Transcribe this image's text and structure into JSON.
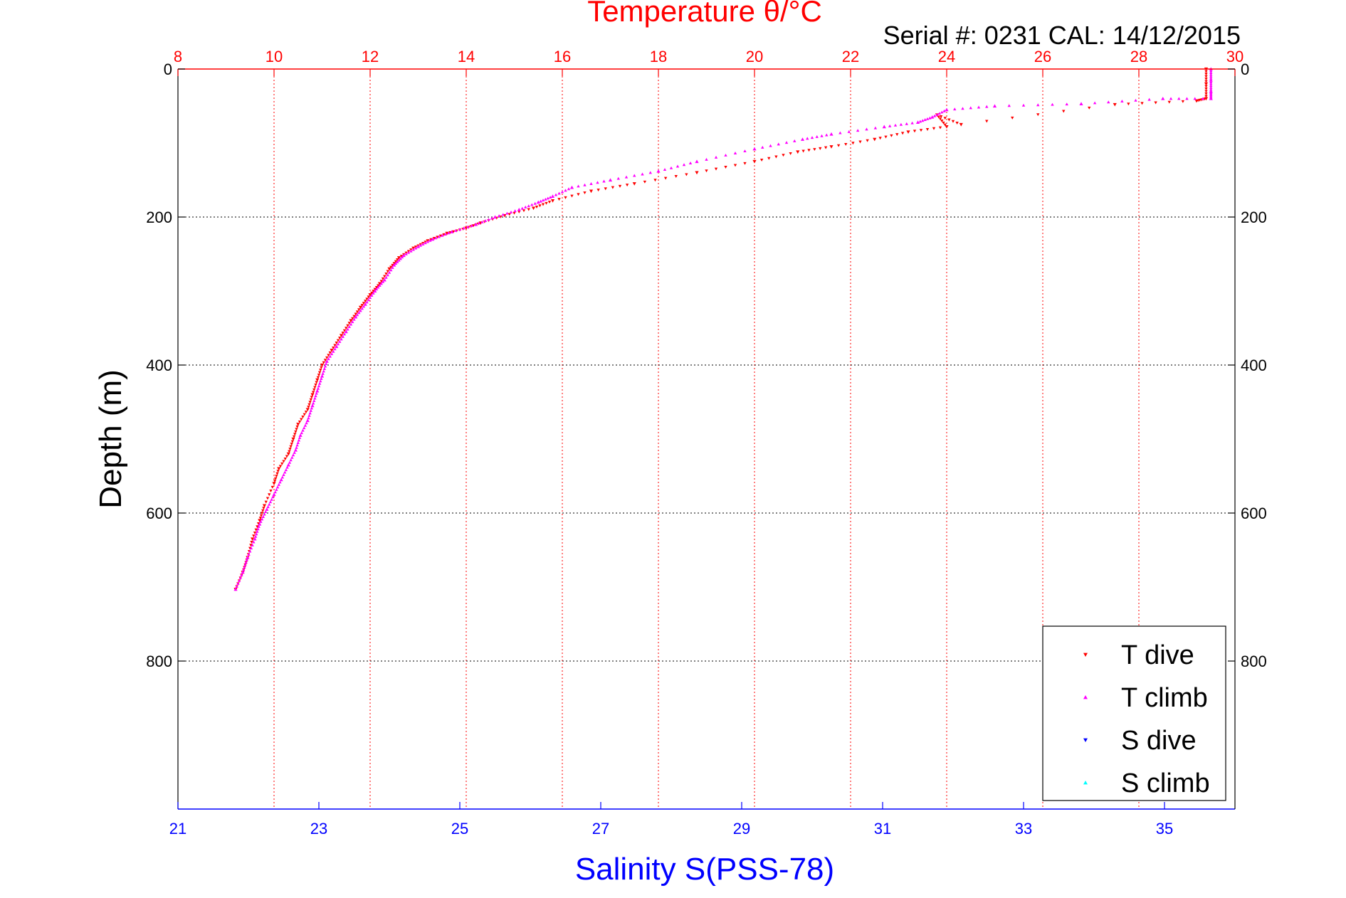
{
  "chart_data": {
    "type": "scatter",
    "title": "Temperature θ/°C",
    "subtitle": "Serial #: 0231  CAL: 14/12/2015",
    "ylabel": "Depth (m)",
    "xlabel_bottom": "Salinity S(PSS-78)",
    "ylim": [
      0,
      1000
    ],
    "y_reversed": true,
    "y_ticks": [
      "0",
      "200",
      "400",
      "600",
      "800"
    ],
    "temperature_axis": {
      "xlim": [
        8,
        30
      ],
      "ticks": [
        "8",
        "10",
        "12",
        "14",
        "16",
        "18",
        "20",
        "22",
        "24",
        "26",
        "28",
        "30"
      ],
      "color": "#ff0000"
    },
    "salinity_axis": {
      "xlim": [
        21,
        36
      ],
      "ticks": [
        "21",
        "23",
        "25",
        "27",
        "29",
        "31",
        "33",
        "35"
      ],
      "color": "#0000ff"
    },
    "grid": true,
    "legend_position": "bottom-right",
    "series": [
      {
        "name": "T dive",
        "axis": "temperature",
        "marker": "triangle-down",
        "color": "#ff0000",
        "points": [
          [
            29.4,
            0
          ],
          [
            29.4,
            20
          ],
          [
            29.4,
            40
          ],
          [
            29.2,
            43
          ],
          [
            27.5,
            48
          ],
          [
            24.3,
            75
          ],
          [
            23.8,
            62
          ],
          [
            24.0,
            78
          ],
          [
            23.2,
            85
          ],
          [
            22.5,
            95
          ],
          [
            21.6,
            105
          ],
          [
            20.9,
            112
          ],
          [
            20.0,
            125
          ],
          [
            18.8,
            140
          ],
          [
            17.5,
            155
          ],
          [
            16.6,
            165
          ],
          [
            15.8,
            178
          ],
          [
            15.4,
            188
          ],
          [
            14.8,
            198
          ],
          [
            14.3,
            208
          ],
          [
            14.0,
            215
          ],
          [
            13.6,
            222
          ],
          [
            13.2,
            232
          ],
          [
            12.9,
            242
          ],
          [
            12.6,
            255
          ],
          [
            12.4,
            270
          ],
          [
            12.2,
            290
          ],
          [
            12.0,
            305
          ],
          [
            11.8,
            322
          ],
          [
            11.6,
            340
          ],
          [
            11.4,
            360
          ],
          [
            11.2,
            380
          ],
          [
            11.0,
            400
          ],
          [
            10.9,
            420
          ],
          [
            10.8,
            440
          ],
          [
            10.7,
            460
          ],
          [
            10.5,
            480
          ],
          [
            10.4,
            500
          ],
          [
            10.3,
            520
          ],
          [
            10.1,
            540
          ],
          [
            10.0,
            560
          ],
          [
            9.8,
            590
          ],
          [
            9.7,
            610
          ],
          [
            9.55,
            635
          ],
          [
            9.45,
            660
          ],
          [
            9.35,
            680
          ],
          [
            9.2,
            703
          ]
        ]
      },
      {
        "name": "T climb",
        "axis": "temperature",
        "marker": "triangle-up",
        "color": "#ff00ff",
        "points": [
          [
            29.5,
            0
          ],
          [
            29.5,
            15
          ],
          [
            29.5,
            30
          ],
          [
            29.5,
            40
          ],
          [
            28.5,
            40
          ],
          [
            26.8,
            47
          ],
          [
            25.0,
            50
          ],
          [
            24.0,
            55
          ],
          [
            23.7,
            65
          ],
          [
            23.4,
            72
          ],
          [
            22.7,
            78
          ],
          [
            21.6,
            88
          ],
          [
            21.0,
            95
          ],
          [
            20.0,
            108
          ],
          [
            18.8,
            125
          ],
          [
            18.0,
            138
          ],
          [
            17.0,
            150
          ],
          [
            16.2,
            160
          ],
          [
            15.8,
            172
          ],
          [
            15.5,
            180
          ],
          [
            15.1,
            190
          ],
          [
            14.6,
            200
          ],
          [
            14.2,
            210
          ],
          [
            13.7,
            220
          ],
          [
            13.3,
            230
          ],
          [
            13.0,
            240
          ],
          [
            12.7,
            252
          ],
          [
            12.5,
            265
          ],
          [
            12.3,
            285
          ],
          [
            12.1,
            300
          ],
          [
            11.9,
            318
          ],
          [
            11.7,
            335
          ],
          [
            11.5,
            355
          ],
          [
            11.3,
            375
          ],
          [
            11.1,
            395
          ],
          [
            11.0,
            415
          ],
          [
            10.9,
            435
          ],
          [
            10.8,
            455
          ],
          [
            10.7,
            475
          ],
          [
            10.55,
            495
          ],
          [
            10.45,
            515
          ],
          [
            10.3,
            535
          ],
          [
            10.15,
            555
          ],
          [
            10.0,
            575
          ],
          [
            9.85,
            595
          ],
          [
            9.7,
            615
          ],
          [
            9.6,
            635
          ],
          [
            9.45,
            660
          ],
          [
            9.35,
            680
          ],
          [
            9.2,
            703
          ]
        ]
      },
      {
        "name": "S dive",
        "axis": "salinity",
        "marker": "triangle-down",
        "color": "#0000ff",
        "points": []
      },
      {
        "name": "S climb",
        "axis": "salinity",
        "marker": "triangle-up",
        "color": "#00ffff",
        "points": []
      }
    ]
  }
}
